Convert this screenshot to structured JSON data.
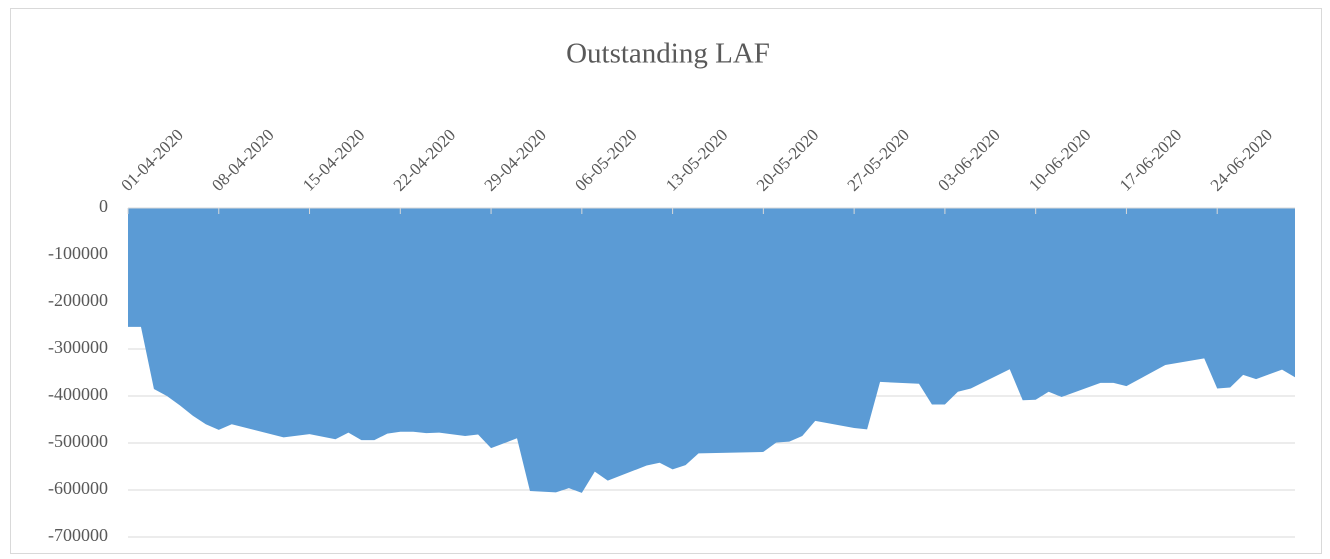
{
  "chart_data": {
    "type": "area",
    "title": "Outstanding LAF",
    "color": "#5b9bd5",
    "grid": true,
    "x": [
      "01-04-2020",
      "02-04-2020",
      "03-04-2020",
      "04-04-2020",
      "05-04-2020",
      "06-04-2020",
      "07-04-2020",
      "08-04-2020",
      "09-04-2020",
      "13-04-2020",
      "15-04-2020",
      "17-04-2020",
      "18-04-2020",
      "19-04-2020",
      "20-04-2020",
      "21-04-2020",
      "22-04-2020",
      "23-04-2020",
      "24-04-2020",
      "25-04-2020",
      "27-04-2020",
      "28-04-2020",
      "29-04-2020",
      "01-05-2020",
      "02-05-2020",
      "04-05-2020",
      "05-05-2020",
      "06-05-2020",
      "07-05-2020",
      "08-05-2020",
      "11-05-2020",
      "12-05-2020",
      "13-05-2020",
      "14-05-2020",
      "15-05-2020",
      "20-05-2020",
      "21-05-2020",
      "22-05-2020",
      "23-05-2020",
      "24-05-2020",
      "27-05-2020",
      "28-05-2020",
      "29-05-2020",
      "01-06-2020",
      "02-06-2020",
      "03-06-2020",
      "04-06-2020",
      "05-06-2020",
      "08-06-2020",
      "09-06-2020",
      "10-06-2020",
      "11-06-2020",
      "12-06-2020",
      "15-06-2020",
      "16-06-2020",
      "17-06-2020",
      "20-06-2020",
      "23-06-2020",
      "24-06-2020",
      "25-06-2020",
      "26-06-2020",
      "27-06-2020",
      "29-06-2020",
      "30-06-2020"
    ],
    "values": [
      -253000,
      -253000,
      -385000,
      -400000,
      -420000,
      -442000,
      -460000,
      -472000,
      -460000,
      -488000,
      -481000,
      -492000,
      -478000,
      -494000,
      -494000,
      -480000,
      -476000,
      -476000,
      -479000,
      -478000,
      -485000,
      -482000,
      -511000,
      -490000,
      -602000,
      -605000,
      -596000,
      -606000,
      -561000,
      -580000,
      -548000,
      -542000,
      -556000,
      -547000,
      -522000,
      -519000,
      -499000,
      -497000,
      -485000,
      -453000,
      -468000,
      -471000,
      -370000,
      -374000,
      -418000,
      -418000,
      -391000,
      -384000,
      -343000,
      -409000,
      -408000,
      -391000,
      -402000,
      -372000,
      -372000,
      -379000,
      -334000,
      -320000,
      -384000,
      -382000,
      -355000,
      -364000,
      -344000,
      -360000
    ],
    "xlim": [
      "01-04-2020",
      "30-06-2020"
    ],
    "xticks": [
      "01-04-2020",
      "08-04-2020",
      "15-04-2020",
      "22-04-2020",
      "29-04-2020",
      "06-05-2020",
      "13-05-2020",
      "20-05-2020",
      "27-05-2020",
      "03-06-2020",
      "10-06-2020",
      "17-06-2020",
      "24-06-2020"
    ],
    "ylim": [
      -700000,
      0
    ],
    "yticks": [
      0,
      -100000,
      -200000,
      -300000,
      -400000,
      -500000,
      -600000,
      -700000
    ]
  }
}
